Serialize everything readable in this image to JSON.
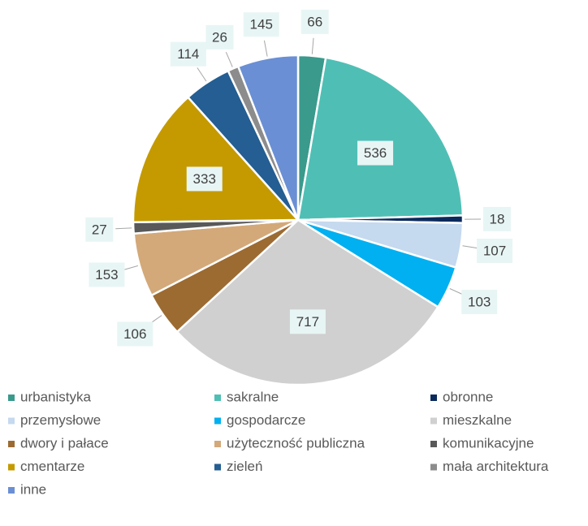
{
  "chart_data": {
    "type": "pie",
    "categories": [
      "urbanistyka",
      "sakralne",
      "obronne",
      "przemysłowe",
      "gospodarcze",
      "mieszkalne",
      "dwory i pałace",
      "użyteczność publiczna",
      "komunikacyjne",
      "cmentarze",
      "zieleń",
      "mała architektura",
      "inne"
    ],
    "values": [
      66,
      536,
      18,
      107,
      103,
      717,
      106,
      153,
      27,
      333,
      114,
      26,
      145
    ],
    "colors": [
      "#3a9a8c",
      "#4fbfb5",
      "#0b2a5c",
      "#c5d9ef",
      "#00b0f0",
      "#d0d0d0",
      "#9c6b32",
      "#d3a979",
      "#595959",
      "#c49a00",
      "#245e92",
      "#8c8c8c",
      "#6a8fd4"
    ],
    "legend": "bottom"
  }
}
